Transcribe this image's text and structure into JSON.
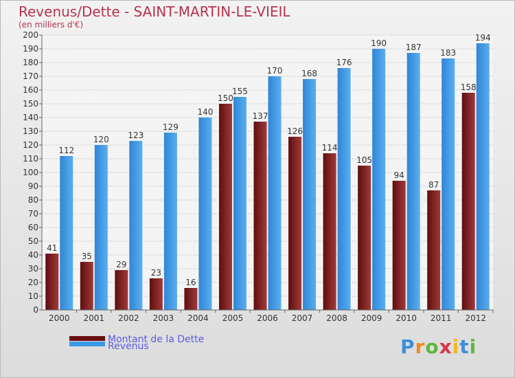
{
  "header": {
    "title": "Revenus/Dette - SAINT-MARTIN-LE-VIEIL",
    "subtitle": "(en milliers d'€)"
  },
  "colors": {
    "dette": "#7a1c1c",
    "revenus": "#3d9ae6",
    "title": "#b5344f",
    "legend_text": "#5a5ae6"
  },
  "legend": {
    "items": [
      {
        "label": "Montant de la Dette",
        "color": "#6b0f0f"
      },
      {
        "label": "Revenus",
        "color": "#3d9ae6"
      }
    ]
  },
  "logo": {
    "text": "Proxiti"
  },
  "chart_data": {
    "type": "bar",
    "categories": [
      "2000",
      "2001",
      "2002",
      "2003",
      "2004",
      "2005",
      "2006",
      "2007",
      "2008",
      "2009",
      "2010",
      "2011",
      "2012"
    ],
    "series": [
      {
        "name": "Montant de la Dette",
        "values": [
          41,
          35,
          29,
          23,
          16,
          150,
          137,
          126,
          114,
          105,
          94,
          87,
          158
        ]
      },
      {
        "name": "Revenus",
        "values": [
          112,
          120,
          123,
          129,
          140,
          155,
          170,
          168,
          176,
          190,
          187,
          183,
          194
        ]
      }
    ],
    "ylim": [
      0,
      200
    ],
    "ytick_step": 10,
    "grid": true
  }
}
